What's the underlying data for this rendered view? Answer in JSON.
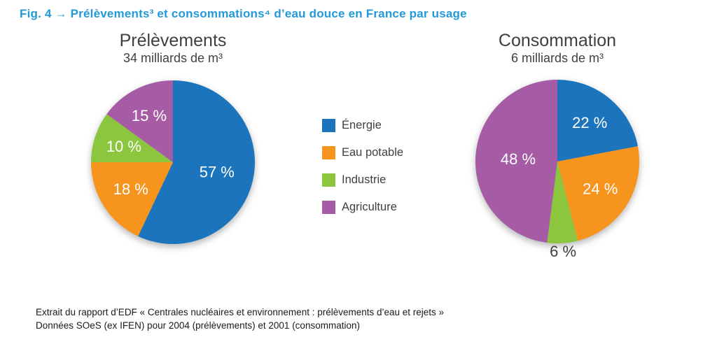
{
  "figure": {
    "title": "Fig. 4 → Prélèvements³ et consommations⁴ d’eau douce en France par usage",
    "title_color": "#2299D8"
  },
  "colors": {
    "energie": "#1C75BC",
    "eau_potable": "#F7941E",
    "industrie": "#8CC63F",
    "agriculture": "#A55CA5",
    "heading_text": "#3F3F3F"
  },
  "legend": {
    "items": [
      {
        "label": "Énergie",
        "color": "#1C75BC"
      },
      {
        "label": "Eau potable",
        "color": "#F7941E"
      },
      {
        "label": "Industrie",
        "color": "#8CC63F"
      },
      {
        "label": "Agriculture",
        "color": "#A55CA5"
      }
    ]
  },
  "chart_data": [
    {
      "type": "pie",
      "title": "Prélèvements",
      "subtitle": "34 milliards de m³",
      "categories": [
        "Énergie",
        "Eau potable",
        "Industrie",
        "Agriculture"
      ],
      "values": [
        57,
        18,
        10,
        15
      ],
      "start_angle_deg": 0,
      "direction": "clockwise",
      "slices": [
        {
          "label": "Énergie",
          "value": 57,
          "pct_label": "57 %",
          "color": "#1C75BC",
          "label_color": "#FFFFFF",
          "label_r": 0.55
        },
        {
          "label": "Eau potable",
          "value": 18,
          "pct_label": "18 %",
          "color": "#F7941E",
          "label_color": "#FFFFFF",
          "label_r": 0.61
        },
        {
          "label": "Industrie",
          "value": 10,
          "pct_label": "10 %",
          "color": "#8CC63F",
          "label_color": "#FFFFFF",
          "label_r": 0.63
        },
        {
          "label": "Agriculture",
          "value": 15,
          "pct_label": "15 %",
          "color": "#A55CA5",
          "label_color": "#FFFFFF",
          "label_r": 0.64
        }
      ]
    },
    {
      "type": "pie",
      "title": "Consommation",
      "subtitle": "6 milliards de m³",
      "categories": [
        "Énergie",
        "Eau potable",
        "Industrie",
        "Agriculture"
      ],
      "values": [
        22,
        24,
        6,
        48
      ],
      "start_angle_deg": 0,
      "direction": "clockwise",
      "slices": [
        {
          "label": "Énergie",
          "value": 22,
          "pct_label": "22 %",
          "color": "#1C75BC",
          "label_color": "#FFFFFF",
          "label_r": 0.62
        },
        {
          "label": "Eau potable",
          "value": 24,
          "pct_label": "24 %",
          "color": "#F7941E",
          "label_color": "#FFFFFF",
          "label_r": 0.62
        },
        {
          "label": "Industrie",
          "value": 6,
          "pct_label": "6 %",
          "color": "#8CC63F",
          "label_color": "#3F3F3F",
          "label_r": 1.1
        },
        {
          "label": "Agriculture",
          "value": 48,
          "pct_label": "48 %",
          "color": "#A55CA5",
          "label_color": "#FFFFFF",
          "label_r": 0.48
        }
      ]
    }
  ],
  "footer": {
    "line1": "Extrait du rapport d’EDF « Centrales nucléaires et environnement : prélèvements d’eau et rejets »",
    "line2": "Données SOeS (ex IFEN) pour 2004 (prélèvements) et 2001 (consommation)"
  }
}
